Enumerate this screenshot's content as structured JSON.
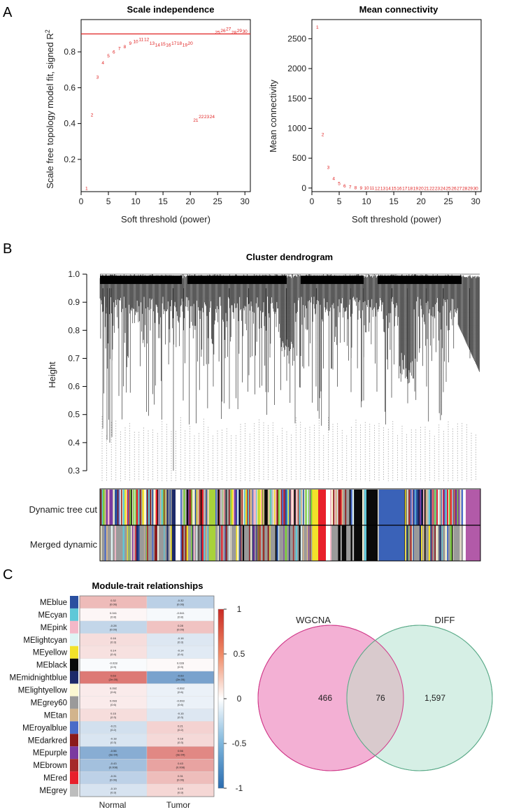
{
  "panels": {
    "a": "A",
    "b": "B",
    "c": "C"
  },
  "scale_independence": {
    "title": "Scale independence",
    "xlabel": "Soft threshold (power)",
    "ylabel": "Scale free topology model fit, signed R",
    "ylabel_sup": "2",
    "cutoff": 0.9,
    "xlim": [
      0,
      31
    ],
    "ylim": [
      0.02,
      0.98
    ],
    "xticks": [
      "0",
      "5",
      "10",
      "15",
      "20",
      "25",
      "30"
    ],
    "yticks": [
      "0.2",
      "0.4",
      "0.6",
      "0.8"
    ],
    "x": [
      1,
      2,
      3,
      4,
      5,
      6,
      7,
      8,
      9,
      10,
      11,
      12,
      13,
      14,
      15,
      16,
      17,
      18,
      19,
      20,
      21,
      22,
      23,
      24,
      25,
      26,
      27,
      28,
      29,
      30
    ],
    "y": [
      0.04,
      0.45,
      0.66,
      0.74,
      0.78,
      0.8,
      0.82,
      0.83,
      0.85,
      0.86,
      0.87,
      0.87,
      0.85,
      0.84,
      0.845,
      0.84,
      0.85,
      0.85,
      0.84,
      0.85,
      0.42,
      0.44,
      0.44,
      0.44,
      0.91,
      0.92,
      0.93,
      0.91,
      0.92,
      0.915
    ],
    "labels": [
      "1",
      "2",
      "3",
      "4",
      "5",
      "6",
      "7",
      "8",
      "9",
      "10",
      "11",
      "12",
      "13",
      "14",
      "15",
      "16",
      "17",
      "18",
      "19",
      "20",
      "21",
      "22",
      "23",
      "24",
      "25",
      "26",
      "27",
      "28",
      "29",
      "30"
    ]
  },
  "mean_connectivity": {
    "title": "Mean connectivity",
    "xlabel": "Soft threshold (power)",
    "ylabel": "Mean connectivity",
    "xlim": [
      0,
      31
    ],
    "ylim": [
      -60,
      2820
    ],
    "xticks": [
      "0",
      "5",
      "10",
      "15",
      "20",
      "25",
      "30"
    ],
    "yticks": [
      "0",
      "500",
      "1000",
      "1500",
      "2000",
      "2500"
    ],
    "x": [
      1,
      2,
      3,
      4,
      5,
      6,
      7,
      8,
      9,
      10,
      11,
      12,
      13,
      14,
      15,
      16,
      17,
      18,
      19,
      20,
      21,
      22,
      23,
      24,
      25,
      26,
      27,
      28,
      29,
      30
    ],
    "y": [
      2700,
      900,
      350,
      160,
      80,
      40,
      20,
      10,
      5,
      3,
      2,
      1,
      1,
      0,
      0,
      0,
      0,
      0,
      0,
      0,
      0,
      0,
      0,
      0,
      0,
      0,
      0,
      0,
      0,
      0
    ],
    "labels": [
      "1",
      "2",
      "3",
      "4",
      "5",
      "6",
      "7",
      "8",
      "9",
      "10",
      "11",
      "12",
      "13",
      "14",
      "15",
      "16",
      "17",
      "18",
      "19",
      "20",
      "21",
      "22",
      "23",
      "24",
      "25",
      "26",
      "27",
      "28",
      "29",
      "30"
    ]
  },
  "dendrogram": {
    "title": "Cluster dendrogram",
    "ylabel": "Height",
    "yticks": [
      "0.3",
      "0.4",
      "0.5",
      "0.6",
      "0.7",
      "0.8",
      "0.9",
      "1.0"
    ],
    "row1_label": "Dynamic tree cut",
    "row2_label": "Merged dynamic"
  },
  "heatmap": {
    "title": "Module-trait relationships",
    "columns": [
      "Normal",
      "Tumor"
    ],
    "legend_ticks": [
      "1",
      "0.5",
      "0",
      "-0.5",
      "-1"
    ],
    "modules": [
      {
        "name": "MEblue",
        "color": "#2a50a0",
        "normal": "0.32",
        "normal_p": "(0.06)",
        "tumor": "-0.32",
        "tumor_p": "(0.06)",
        "r": 0.32
      },
      {
        "name": "MEcyan",
        "color": "#5fc8d8",
        "normal": "0.041",
        "normal_p": "(0.8)",
        "tumor": "-0.041",
        "tumor_p": "(0.8)",
        "r": 0.041
      },
      {
        "name": "MEpink",
        "color": "#f4b8c8",
        "normal": "-0.28",
        "normal_p": "(0.09)",
        "tumor": "0.28",
        "tumor_p": "(0.09)",
        "r": -0.28
      },
      {
        "name": "MElightcyan",
        "color": "#dff4f4",
        "normal": "0.16",
        "normal_p": "(0.3)",
        "tumor": "-0.16",
        "tumor_p": "(0.3)",
        "r": 0.16
      },
      {
        "name": "MEyellow",
        "color": "#f2e22a",
        "normal": "0.14",
        "normal_p": "(0.4)",
        "tumor": "-0.14",
        "tumor_p": "(0.4)",
        "r": 0.14
      },
      {
        "name": "MEblack",
        "color": "#0a0a0a",
        "normal": "-0.028",
        "normal_p": "(0.9)",
        "tumor": "0.028",
        "tumor_p": "(0.9)",
        "r": -0.028
      },
      {
        "name": "MEmidnightblue",
        "color": "#1d2a6a",
        "normal": "0.63",
        "normal_p": "(2e-05)",
        "tumor": "-0.63",
        "tumor_p": "(2e-05)",
        "r": 0.63
      },
      {
        "name": "MElightyellow",
        "color": "#fbf8d2",
        "normal": "0.092",
        "normal_p": "(0.6)",
        "tumor": "-0.092",
        "tumor_p": "(0.6)",
        "r": 0.092
      },
      {
        "name": "MEgrey60",
        "color": "#9a9a9a",
        "normal": "0.093",
        "normal_p": "(0.6)",
        "tumor": "-0.093",
        "tumor_p": "(0.6)",
        "r": 0.093
      },
      {
        "name": "MEtan",
        "color": "#d2b48c",
        "normal": "0.16",
        "normal_p": "(0.3)",
        "tumor": "-0.16",
        "tumor_p": "(0.3)",
        "r": 0.16
      },
      {
        "name": "MEroyalblue",
        "color": "#4a6bc8",
        "normal": "-0.21",
        "normal_p": "(0.2)",
        "tumor": "0.21",
        "tumor_p": "(0.2)",
        "r": -0.21
      },
      {
        "name": "MEdarkred",
        "color": "#8b1a1a",
        "normal": "-0.18",
        "normal_p": "(0.3)",
        "tumor": "0.18",
        "tumor_p": "(0.3)",
        "r": -0.18
      },
      {
        "name": "MEpurple",
        "color": "#7a3aa0",
        "normal": "-0.56",
        "normal_p": "(3e-04)",
        "tumor": "0.56",
        "tumor_p": "(3e-04)",
        "r": -0.56
      },
      {
        "name": "MEbrown",
        "color": "#a52a2a",
        "normal": "-0.43",
        "normal_p": "(0.008)",
        "tumor": "0.43",
        "tumor_p": "(0.008)",
        "r": -0.43
      },
      {
        "name": "MEred",
        "color": "#e8202a",
        "normal": "-0.31",
        "normal_p": "(0.06)",
        "tumor": "0.31",
        "tumor_p": "(0.06)",
        "r": -0.31
      },
      {
        "name": "MEgrey",
        "color": "#bdbdbd",
        "normal": "-0.19",
        "normal_p": "(0.3)",
        "tumor": "0.19",
        "tumor_p": "(0.3)",
        "r": -0.19
      }
    ]
  },
  "venn": {
    "left_label": "WGCNA",
    "right_label": "DIFF",
    "left_only": "466",
    "overlap": "76",
    "right_only": "1,597",
    "left_color": "#f2a7cf",
    "right_color": "#cfece0"
  }
}
